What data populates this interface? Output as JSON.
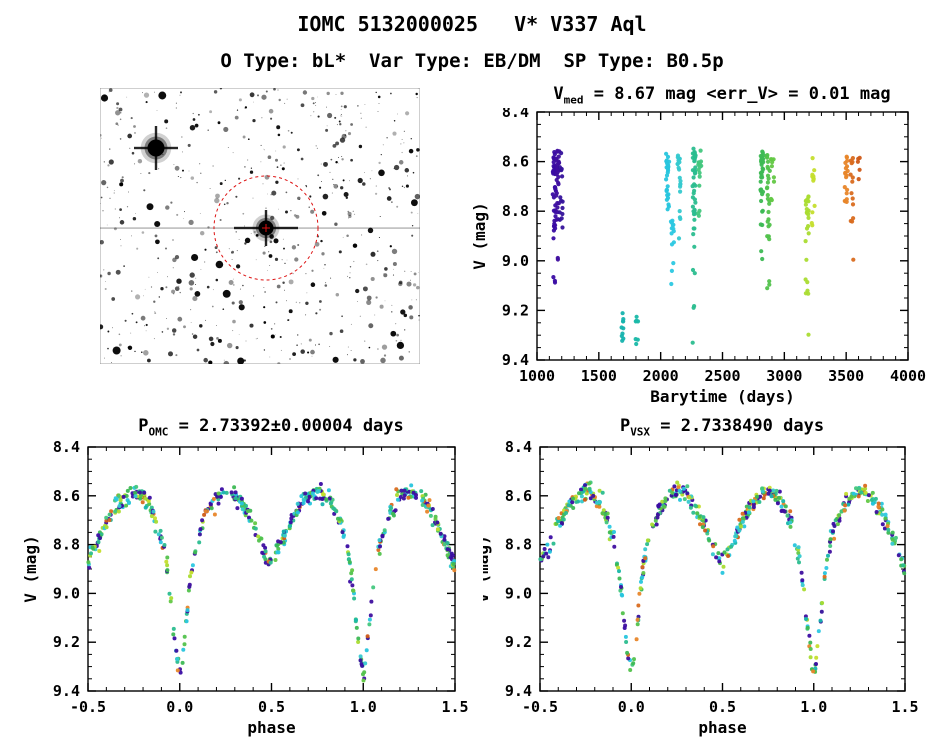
{
  "page": {
    "title": "IOMC 5132000025   V* V337 Aql",
    "subtitle": "O Type: bL*  Var Type: EB/DM  SP Type: B0.5p"
  },
  "finder": {
    "description": "inverted grayscale star-field finder chart with target circled",
    "star_color": "#000000",
    "target_circle_color": "#dd1111",
    "border_color": "#888888"
  },
  "chart_data": [
    {
      "id": "time_series",
      "type": "scatter",
      "title_prefix": "V",
      "title_sub": "med",
      "title_rest": " = 8.67 mag <err_V> = 0.01 mag",
      "xlabel": "Barytime (days)",
      "ylabel": "V (mag)",
      "xlim": [
        1000,
        4000
      ],
      "ylim": [
        8.4,
        9.4
      ],
      "y_inverted": true,
      "grid": false,
      "xticks": [
        1000,
        1500,
        2000,
        2500,
        3000,
        3500,
        4000
      ],
      "xtick_labels": [
        "1000",
        "1500",
        "2000",
        "2500",
        "3000",
        "3500",
        "4000"
      ],
      "x_minor": 100,
      "yticks": [
        8.4,
        8.6,
        8.8,
        9.0,
        9.2,
        9.4
      ],
      "ytick_labels": [
        "8.4",
        "8.6",
        "8.8",
        "9.0",
        "9.2",
        "9.4"
      ],
      "y_minor": 0.05,
      "clusters": [
        {
          "t": 1140,
          "n": 42,
          "mag_min": 8.55,
          "mag_max": 9.26,
          "color": "#3a0ca3"
        },
        {
          "t": 1168,
          "n": 30,
          "mag_min": 8.55,
          "mag_max": 9.3,
          "color": "#3f0f9f"
        },
        {
          "t": 1195,
          "n": 14,
          "mag_min": 8.58,
          "mag_max": 9.18,
          "color": "#35129b"
        },
        {
          "t": 1690,
          "n": 10,
          "mag_min": 9.18,
          "mag_max": 9.37,
          "color": "#16b3ae"
        },
        {
          "t": 1805,
          "n": 7,
          "mag_min": 9.24,
          "mag_max": 9.37,
          "color": "#19b8a8"
        },
        {
          "t": 2055,
          "n": 26,
          "mag_min": 8.55,
          "mag_max": 8.78,
          "color": "#27c5dd"
        },
        {
          "t": 2095,
          "n": 14,
          "mag_min": 8.84,
          "mag_max": 9.1,
          "color": "#2cc8e2"
        },
        {
          "t": 2150,
          "n": 20,
          "mag_min": 8.55,
          "mag_max": 9.02,
          "color": "#35c9cf"
        },
        {
          "t": 2270,
          "n": 44,
          "mag_min": 8.55,
          "mag_max": 9.37,
          "color": "#2bbd8f"
        },
        {
          "t": 2315,
          "n": 16,
          "mag_min": 8.56,
          "mag_max": 8.95,
          "color": "#43c77e"
        },
        {
          "t": 2820,
          "n": 34,
          "mag_min": 8.57,
          "mag_max": 9.12,
          "color": "#3db954"
        },
        {
          "t": 2872,
          "n": 28,
          "mag_min": 8.58,
          "mag_max": 9.1,
          "color": "#52c24c"
        },
        {
          "t": 2905,
          "n": 9,
          "mag_min": 8.6,
          "mag_max": 8.76,
          "color": "#63c845"
        },
        {
          "t": 3185,
          "n": 26,
          "mag_min": 8.74,
          "mag_max": 9.36,
          "color": "#aadc32"
        },
        {
          "t": 3235,
          "n": 12,
          "mag_min": 8.6,
          "mag_max": 8.98,
          "color": "#c5de2d"
        },
        {
          "t": 3500,
          "n": 18,
          "mag_min": 8.55,
          "mag_max": 8.76,
          "color": "#e8862a"
        },
        {
          "t": 3548,
          "n": 14,
          "mag_min": 8.6,
          "mag_max": 9.0,
          "color": "#d96b1f"
        },
        {
          "t": 3600,
          "n": 5,
          "mag_min": 8.58,
          "mag_max": 8.68,
          "color": "#cf5a18"
        }
      ],
      "summary": {
        "v_median_mag": 8.67,
        "v_err_mag": 0.01
      }
    },
    {
      "id": "folded_omc",
      "type": "scatter",
      "title_prefix": "P",
      "title_sub": "OMC",
      "title_rest": " = 2.73392±0.00004 days",
      "period_days": 2.73392,
      "period_err_days": 4e-05,
      "xlabel": "phase",
      "ylabel": "V (mag)",
      "xlim": [
        -0.5,
        1.5
      ],
      "ylim": [
        8.4,
        9.4
      ],
      "y_inverted": true,
      "grid": false,
      "xticks": [
        -0.5,
        0.0,
        0.5,
        1.0,
        1.5
      ],
      "xtick_labels": [
        "-0.5",
        "0.0",
        "0.5",
        "1.0",
        "1.5"
      ],
      "x_minor": 0.1,
      "yticks": [
        8.4,
        8.6,
        8.8,
        9.0,
        9.2,
        9.4
      ],
      "ytick_labels": [
        "8.4",
        "8.6",
        "8.8",
        "9.0",
        "9.2",
        "9.4"
      ],
      "y_minor": 0.05,
      "n_points": 540,
      "template_curve": [
        [
          0.0,
          9.34
        ],
        [
          0.015,
          9.27
        ],
        [
          0.03,
          9.16
        ],
        [
          0.05,
          9.0
        ],
        [
          0.07,
          8.88
        ],
        [
          0.1,
          8.77
        ],
        [
          0.13,
          8.7
        ],
        [
          0.17,
          8.64
        ],
        [
          0.21,
          8.6
        ],
        [
          0.25,
          8.58
        ],
        [
          0.29,
          8.59
        ],
        [
          0.33,
          8.62
        ],
        [
          0.37,
          8.67
        ],
        [
          0.41,
          8.73
        ],
        [
          0.45,
          8.81
        ],
        [
          0.48,
          8.86
        ],
        [
          0.5,
          8.87
        ],
        [
          0.53,
          8.83
        ],
        [
          0.57,
          8.77
        ],
        [
          0.61,
          8.7
        ],
        [
          0.65,
          8.64
        ],
        [
          0.7,
          8.6
        ],
        [
          0.74,
          8.58
        ],
        [
          0.78,
          8.59
        ],
        [
          0.82,
          8.62
        ],
        [
          0.86,
          8.68
        ],
        [
          0.89,
          8.75
        ],
        [
          0.92,
          8.85
        ],
        [
          0.94,
          8.95
        ],
        [
          0.96,
          9.1
        ],
        [
          0.98,
          9.24
        ],
        [
          1.0,
          9.34
        ]
      ]
    },
    {
      "id": "folded_vsx",
      "type": "scatter",
      "title_prefix": "P",
      "title_sub": "VSX",
      "title_rest": " = 2.7338490 days",
      "period_days": 2.733849,
      "xlabel": "phase",
      "ylabel": "V (mag)",
      "xlim": [
        -0.5,
        1.5
      ],
      "ylim": [
        8.4,
        9.4
      ],
      "y_inverted": true,
      "grid": false,
      "xticks": [
        -0.5,
        0.0,
        0.5,
        1.0,
        1.5
      ],
      "xtick_labels": [
        "-0.5",
        "0.0",
        "0.5",
        "1.0",
        "1.5"
      ],
      "x_minor": 0.1,
      "yticks": [
        8.4,
        8.6,
        8.8,
        9.0,
        9.2,
        9.4
      ],
      "ytick_labels": [
        "8.4",
        "8.6",
        "8.8",
        "9.0",
        "9.2",
        "9.4"
      ],
      "y_minor": 0.05,
      "n_points": 540,
      "template_curve": [
        [
          0.0,
          9.34
        ],
        [
          0.015,
          9.27
        ],
        [
          0.03,
          9.16
        ],
        [
          0.05,
          9.0
        ],
        [
          0.07,
          8.88
        ],
        [
          0.1,
          8.77
        ],
        [
          0.13,
          8.7
        ],
        [
          0.17,
          8.64
        ],
        [
          0.21,
          8.6
        ],
        [
          0.25,
          8.58
        ],
        [
          0.29,
          8.59
        ],
        [
          0.33,
          8.62
        ],
        [
          0.37,
          8.67
        ],
        [
          0.41,
          8.73
        ],
        [
          0.45,
          8.81
        ],
        [
          0.48,
          8.86
        ],
        [
          0.5,
          8.87
        ],
        [
          0.53,
          8.83
        ],
        [
          0.57,
          8.77
        ],
        [
          0.61,
          8.7
        ],
        [
          0.65,
          8.64
        ],
        [
          0.7,
          8.6
        ],
        [
          0.74,
          8.58
        ],
        [
          0.78,
          8.59
        ],
        [
          0.82,
          8.62
        ],
        [
          0.86,
          8.68
        ],
        [
          0.89,
          8.75
        ],
        [
          0.92,
          8.85
        ],
        [
          0.94,
          8.95
        ],
        [
          0.96,
          9.1
        ],
        [
          0.98,
          9.24
        ],
        [
          1.0,
          9.34
        ]
      ]
    }
  ]
}
